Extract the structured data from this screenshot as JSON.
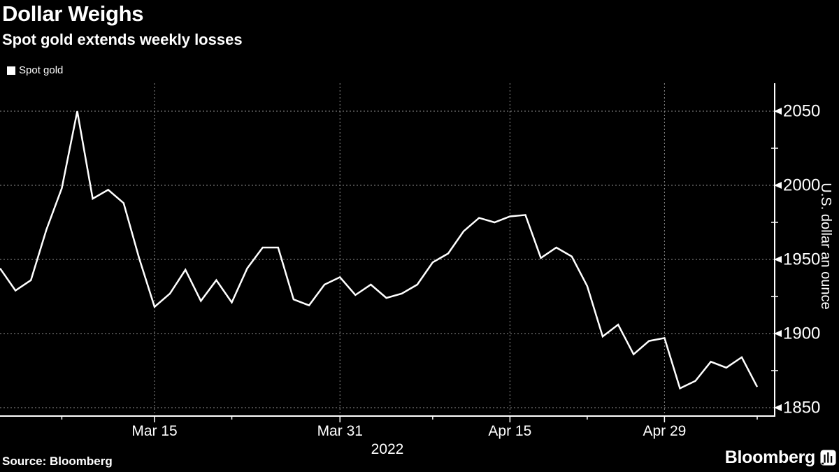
{
  "header": {
    "title": "Dollar Weighs",
    "subtitle": "Spot gold extends weekly losses"
  },
  "legend": {
    "label": "Spot gold",
    "swatch_color": "#ffffff"
  },
  "footer": {
    "source": "Source: Bloomberg",
    "brand": "Bloomberg"
  },
  "colors": {
    "background": "#000000",
    "text": "#ffffff",
    "grid": "#8f8f8f",
    "line": "#ffffff"
  },
  "chart_data": {
    "type": "line",
    "title": "Dollar Weighs",
    "subtitle": "Spot gold extends weekly losses",
    "ylabel": "U.S. dollar an ounce",
    "x_year_label": "2022",
    "grid": "dashed-both",
    "legend_position": "top-left",
    "ylim": [
      1845,
      2070
    ],
    "y_ticks_major": [
      2050,
      2000,
      1950,
      1900,
      1850
    ],
    "y_ticks_minor": [
      2025,
      1975,
      1925,
      1875
    ],
    "x_ticks_major": [
      "Mar 15",
      "Mar 31",
      "Apr 15",
      "Apr 29"
    ],
    "x_ticks_minor": [
      "Mar 7",
      "Mar 22",
      "Apr 8",
      "Apr 22",
      "May 9"
    ],
    "x": [
      "Mar 1",
      "Mar 2",
      "Mar 3",
      "Mar 4",
      "Mar 7",
      "Mar 8",
      "Mar 9",
      "Mar 10",
      "Mar 11",
      "Mar 14",
      "Mar 15",
      "Mar 16",
      "Mar 17",
      "Mar 18",
      "Mar 21",
      "Mar 22",
      "Mar 23",
      "Mar 24",
      "Mar 25",
      "Mar 28",
      "Mar 29",
      "Mar 30",
      "Mar 31",
      "Apr 1",
      "Apr 4",
      "Apr 5",
      "Apr 6",
      "Apr 7",
      "Apr 8",
      "Apr 11",
      "Apr 12",
      "Apr 13",
      "Apr 14",
      "Apr 15",
      "Apr 18",
      "Apr 19",
      "Apr 20",
      "Apr 21",
      "Apr 22",
      "Apr 25",
      "Apr 26",
      "Apr 27",
      "Apr 28",
      "Apr 29",
      "May 2",
      "May 3",
      "May 4",
      "May 5",
      "May 6",
      "May 9"
    ],
    "series": [
      {
        "name": "Spot gold",
        "color": "#ffffff",
        "values": [
          1944,
          1929,
          1936,
          1970,
          1998,
          2050,
          1991,
          1997,
          1988,
          1951,
          1918,
          1927,
          1943,
          1922,
          1936,
          1921,
          1944,
          1958,
          1958,
          1923,
          1919,
          1933,
          1938,
          1926,
          1933,
          1924,
          1927,
          1933,
          1948,
          1954,
          1969,
          1978,
          1975,
          1979,
          1980,
          1951,
          1958,
          1952,
          1932,
          1898,
          1906,
          1886,
          1895,
          1897,
          1863,
          1868,
          1881,
          1877,
          1884,
          1864
        ]
      }
    ]
  }
}
